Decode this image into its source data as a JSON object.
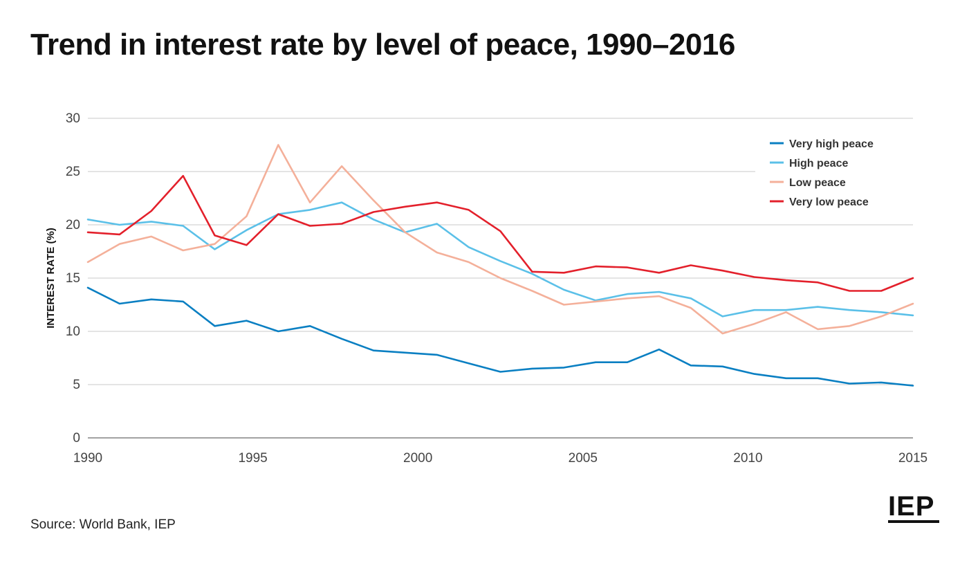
{
  "title": "Trend in interest rate by level of peace, 1990–2016",
  "source": "Source: World Bank, IEP",
  "logo": "IEP",
  "chart_data": {
    "type": "line",
    "ylabel": "INTEREST RATE (%)",
    "xlabel": "",
    "xlim": [
      1990,
      2015
    ],
    "ylim": [
      0,
      30
    ],
    "x_ticks": [
      "1990",
      "1995",
      "2000",
      "2005",
      "2010",
      "2015"
    ],
    "y_ticks": [
      "0",
      "5",
      "10",
      "15",
      "20",
      "25",
      "30"
    ],
    "grid": "horizontal",
    "legend_position": "top-right",
    "x": [
      1990,
      1991,
      1992,
      1993,
      1994,
      1995,
      1996,
      1997,
      1998,
      1999,
      2000,
      2001,
      2002,
      2003,
      2004,
      2005,
      2006,
      2007,
      2008,
      2009,
      2010,
      2011,
      2012,
      2013,
      2014,
      2015,
      2016
    ],
    "series": [
      {
        "name": "Very high peace",
        "color": "#0a7fc2",
        "values": [
          14.1,
          12.6,
          13.0,
          12.8,
          10.5,
          11.0,
          10.0,
          10.5,
          9.3,
          8.2,
          8.0,
          7.8,
          7.0,
          6.2,
          6.5,
          6.6,
          7.1,
          7.1,
          8.3,
          6.8,
          6.7,
          6.0,
          5.6,
          5.6,
          5.1,
          5.2,
          4.9
        ]
      },
      {
        "name": "High peace",
        "color": "#5bc0e8",
        "values": [
          20.5,
          20.0,
          20.3,
          19.9,
          17.7,
          19.5,
          21.0,
          21.4,
          22.1,
          20.5,
          19.3,
          20.1,
          17.9,
          16.6,
          15.4,
          13.9,
          12.9,
          13.5,
          13.7,
          13.1,
          11.4,
          12.0,
          12.0,
          12.3,
          12.0,
          11.8,
          11.5
        ]
      },
      {
        "name": "Low peace",
        "color": "#f4b09a",
        "values": [
          16.5,
          18.2,
          18.9,
          17.6,
          18.2,
          20.8,
          27.5,
          22.1,
          25.5,
          22.3,
          19.3,
          17.4,
          16.5,
          15.0,
          13.8,
          12.5,
          12.8,
          13.1,
          13.3,
          12.2,
          9.8,
          10.7,
          11.8,
          10.2,
          10.5,
          11.4,
          12.6
        ]
      },
      {
        "name": "Very low peace",
        "color": "#e3202b",
        "values": [
          19.3,
          19.1,
          21.3,
          24.6,
          19.0,
          18.1,
          21.0,
          19.9,
          20.1,
          21.2,
          21.7,
          22.1,
          21.4,
          19.4,
          15.6,
          15.5,
          16.1,
          16.0,
          15.5,
          16.2,
          15.7,
          15.1,
          14.8,
          14.6,
          13.8,
          13.8,
          15.0
        ]
      }
    ]
  }
}
